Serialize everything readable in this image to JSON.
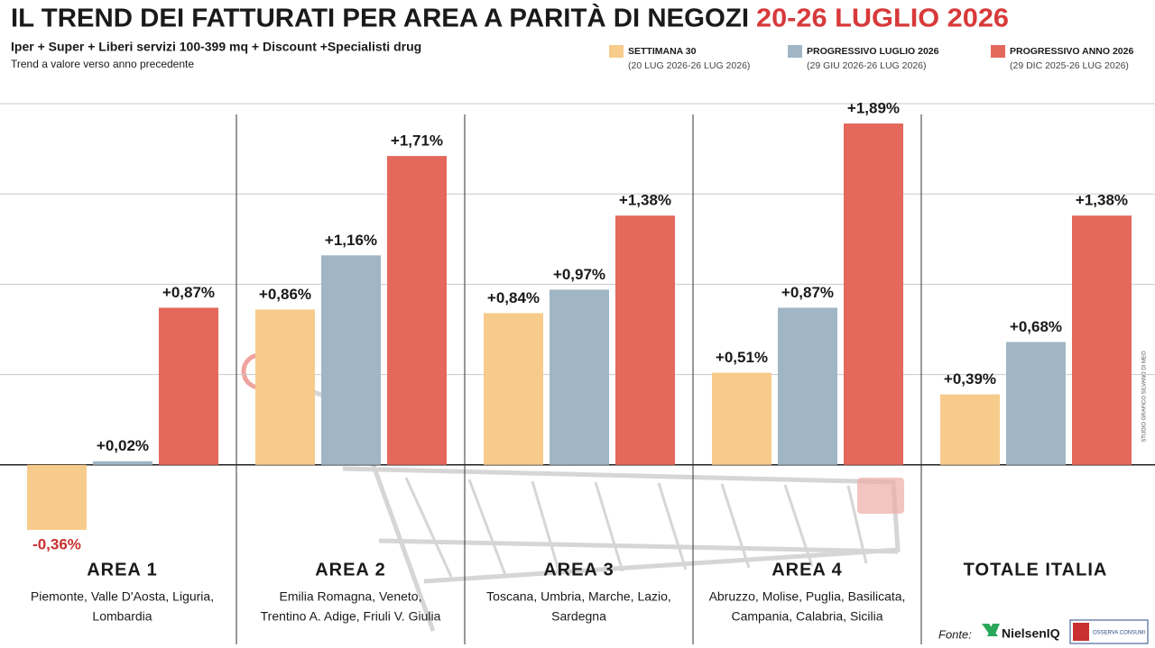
{
  "chart_data": {
    "type": "bar",
    "title": "IL TREND DEI FATTURATI PER AREA A PARITÀ DI NEGOZI",
    "title_period": "20-26 LUGLIO 2026",
    "subtitle": "Iper + Super + Liberi servizi 100-399 mq + Discount +Specialisti drug",
    "note": "Trend a valore verso anno precedente",
    "categories": [
      "AREA 1",
      "AREA 2",
      "AREA 3",
      "AREA 4",
      "TOTALE ITALIA"
    ],
    "category_notes": [
      [
        "Piemonte, Valle D'Aosta, Liguria,",
        "Lombardia"
      ],
      [
        "Emilia Romagna, Veneto,",
        "Trentino A. Adige, Friuli V. Giulia"
      ],
      [
        "Toscana, Umbria, Marche, Lazio,",
        "Sardegna"
      ],
      [
        "Abruzzo, Molise, Puglia, Basilicata,",
        "Campania, Calabria, Sicilia"
      ],
      null
    ],
    "series": [
      {
        "name": "SETTIMANA 30",
        "period": "(20 LUG 2026-26 LUG 2026)",
        "color": "#f6cb8b",
        "values": [
          -0.36,
          0.86,
          0.84,
          0.51,
          0.39
        ],
        "value_labels": [
          "-0,36%",
          "+0,86%",
          "+0,84%",
          "+0,51%",
          "+0,39%"
        ]
      },
      {
        "name": "PROGRESSIVO LUGLIO 2026",
        "period": "(29 GIU 2026-26 LUG 2026)",
        "color": "#a0b6c5",
        "values": [
          0.02,
          1.16,
          0.97,
          0.87,
          0.68
        ],
        "value_labels": [
          "+0,02%",
          "+1,16%",
          "+0,97%",
          "+0,87%",
          "+0,68%"
        ]
      },
      {
        "name": "PROGRESSIVO ANNO 2026",
        "period": "(29 DIC 2025-26 LUG 2026)",
        "color": "#e4685c",
        "values": [
          0.87,
          1.71,
          1.38,
          1.89,
          1.38
        ],
        "value_labels": [
          "+0,87%",
          "+1,71%",
          "+1,38%",
          "+1,89%",
          "+1,38%"
        ]
      }
    ],
    "negative_label_color": "#c8312f",
    "ylim": [
      -0.6,
      2.0
    ],
    "yticks": [
      0,
      0.5,
      1,
      1.5,
      2
    ],
    "grid": true,
    "legend": "top-right",
    "credit": "STUDIO GRAFICO SILVANO DI MEO",
    "source_label": "Fonte:",
    "sources": [
      "NielsenIQ",
      "OSSERVA CONSUMI"
    ]
  }
}
